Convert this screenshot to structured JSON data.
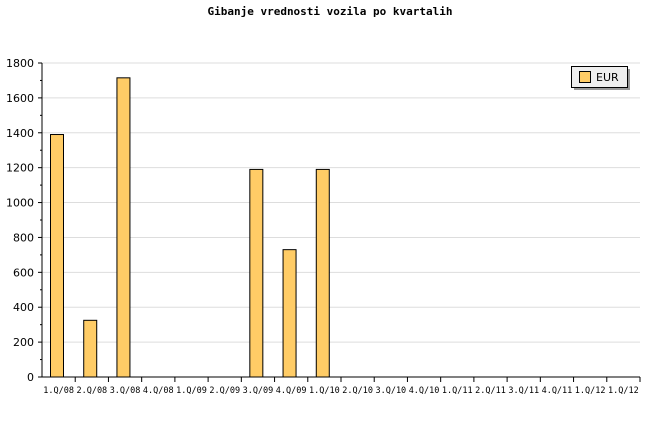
{
  "chart_data": {
    "type": "bar",
    "title": "Gibanje vrednosti vozila po kvartalih",
    "xlabel": "",
    "ylabel": "",
    "ylim": [
      0,
      1800
    ],
    "yticks": [
      0,
      200,
      400,
      600,
      800,
      1000,
      1200,
      1400,
      1600,
      1800
    ],
    "grid": true,
    "legend_position": "top-right",
    "categories": [
      "1.Q/08",
      "2.Q/08",
      "3.Q/08",
      "4.Q/08",
      "1.Q/09",
      "2.Q/09",
      "3.Q/09",
      "4.Q/09",
      "1.Q/10",
      "2.Q/10",
      "3.Q/10",
      "4.Q/10",
      "1.Q/11",
      "2.Q/11",
      "3.Q/11",
      "4.Q/11",
      "1.Q/12",
      "1.Q/12"
    ],
    "series": [
      {
        "name": "EUR",
        "color": "#ffcc66",
        "values": [
          1390,
          325,
          1715,
          0,
          0,
          0,
          1190,
          730,
          1190,
          0,
          0,
          0,
          0,
          0,
          0,
          0,
          0,
          0
        ]
      }
    ]
  }
}
